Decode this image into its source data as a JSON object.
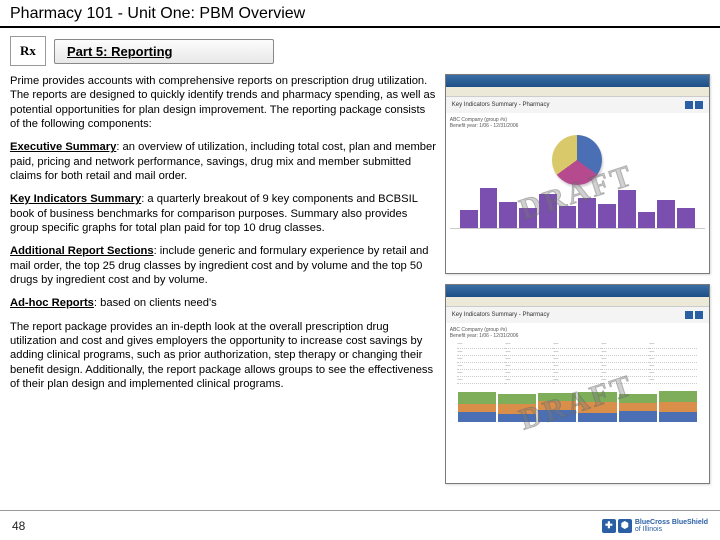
{
  "header": {
    "title": "Pharmacy 101 - Unit One: PBM Overview"
  },
  "banner": {
    "rx_label": "Rx",
    "part_title": "Part 5: Reporting"
  },
  "paragraphs": {
    "intro": "Prime provides accounts with comprehensive reports on prescription drug utilization. The reports are designed to quickly identify trends and pharmacy spending, as well as potential opportunities for plan design improvement. The reporting package consists of the following components:",
    "exec_label": "Executive Summary",
    "exec_text": ": an overview of utilization, including total cost, plan and member paid, pricing and network performance, savings, drug mix and member submitted claims for both retail and mail order.",
    "key_label": "Key Indicators Summary",
    "key_text": ": a quarterly breakout of 9 key components and BCBSIL book of business benchmarks for comparison purposes. Summary also provides group specific graphs for total plan paid for top 10 drug classes.",
    "addl_label": "Additional Report Sections",
    "addl_text": ": include generic and formulary experience by retail and mail order, the top 25 drug classes by ingredient cost and by volume and the top 50 drugs by ingredient cost and by volume.",
    "adhoc_label": "Ad-hoc Reports",
    "adhoc_text": ": based on clients need's",
    "closing": "The report package provides an in-depth look at the overall prescription drug utilization and cost and gives employers the opportunity to increase cost savings by adding clinical programs, such as prior authorization, step therapy or changing their benefit design. Additionally, the report package allows groups to see the effectiveness of their plan design and implemented clinical programs."
  },
  "mock1": {
    "title": "Key Indicators Summary - Pharmacy",
    "sub1": "ABC Company (group #s)",
    "sub2": "Benefit year: 1/06 - 12/31/2006",
    "pie_colors": [
      "#4a6fb5",
      "#b54a8f",
      "#d9c96b"
    ],
    "bars": [
      18,
      40,
      26,
      20,
      34,
      22,
      30,
      24,
      38,
      16,
      28,
      20
    ]
  },
  "mock2": {
    "title": "Key Indicators Summary - Pharmacy",
    "sub1": "ABC Company (group #s)",
    "sub2": "Benefit year: 1/06 - 12/31/2006",
    "stacked": [
      {
        "a": 10,
        "b": 8,
        "c": 12
      },
      {
        "a": 8,
        "b": 10,
        "c": 10
      },
      {
        "a": 12,
        "b": 9,
        "c": 8
      },
      {
        "a": 9,
        "b": 11,
        "c": 10
      },
      {
        "a": 11,
        "b": 8,
        "c": 9
      },
      {
        "a": 10,
        "b": 10,
        "c": 11
      }
    ],
    "stack_colors": [
      "#4a6fb5",
      "#d98f4a",
      "#7fae5a"
    ]
  },
  "draft_text": "DRAFT",
  "footer": {
    "page": "48",
    "brand": "BlueCross BlueShield",
    "brand_sub": "of Illinois"
  }
}
